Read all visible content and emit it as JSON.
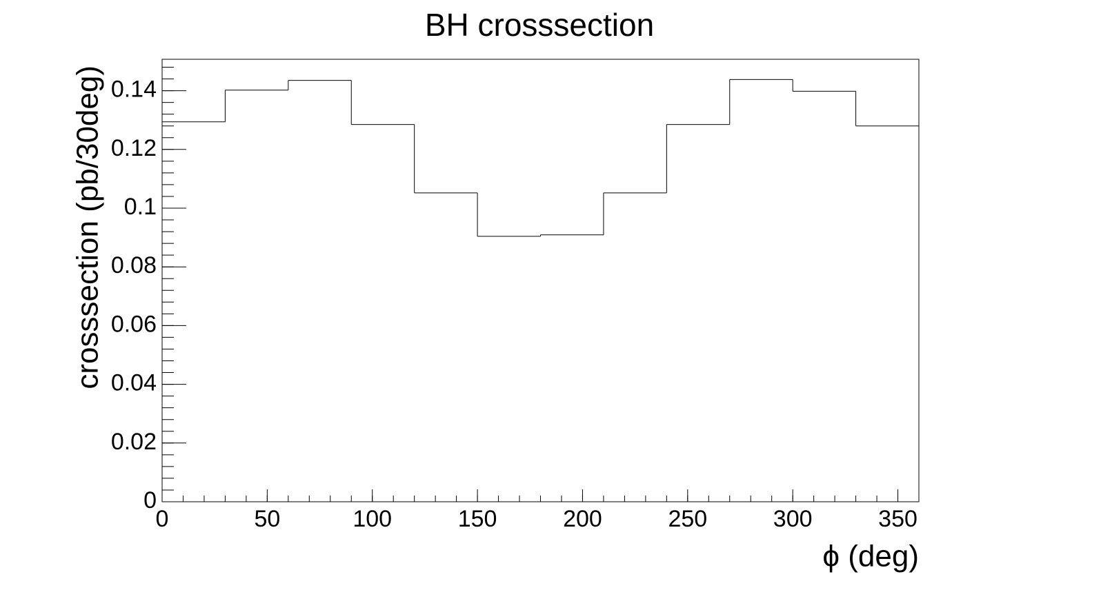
{
  "chart_data": {
    "type": "histogram",
    "title": "BH crosssection",
    "x_label": "ϕ (deg)",
    "y_label": "crosssection (pb/30deg)",
    "bins": [
      0,
      30,
      60,
      90,
      120,
      150,
      180,
      210,
      240,
      270,
      300,
      330,
      360
    ],
    "values": [
      0.1294,
      0.1402,
      0.1435,
      0.1285,
      0.1052,
      0.0904,
      0.0909,
      0.1052,
      0.1285,
      0.1438,
      0.1398,
      0.128
    ],
    "color": "#000000",
    "xlim": [
      0,
      360
    ],
    "xticks": [
      0,
      50,
      100,
      150,
      200,
      250,
      300,
      350
    ],
    "ylim": [
      0,
      0.1507
    ],
    "yticks": [
      0,
      0.02,
      0.04,
      0.06,
      0.08,
      0.1,
      0.12,
      0.14
    ]
  }
}
